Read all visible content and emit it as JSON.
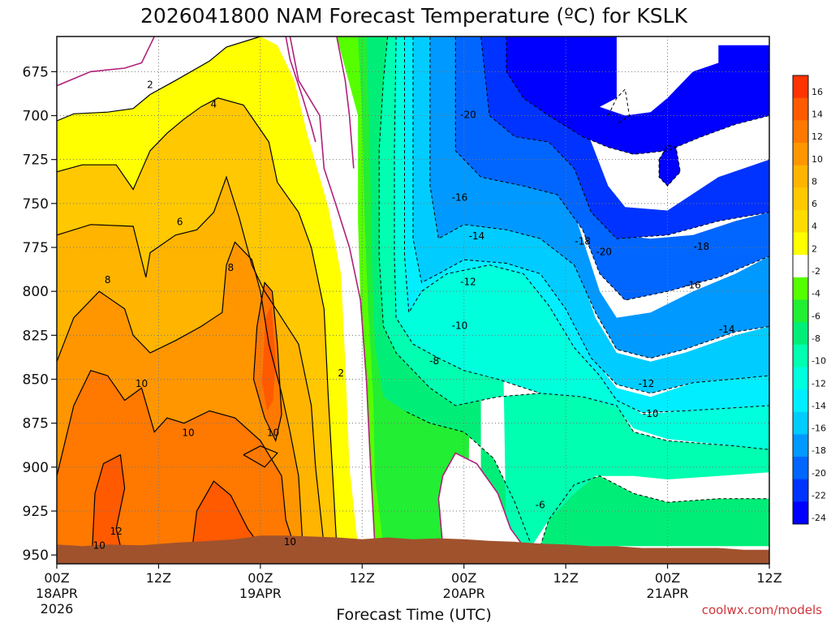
{
  "chart_data": {
    "type": "heatmap",
    "title": "2026041800 NAM Forecast Temperature (ºC) for KSLK",
    "xlabel": "Forecast Time (UTC)",
    "ylabel": "",
    "credit": "coolwx.com/models",
    "x_ticks": [
      {
        "hours": 0,
        "label": "00Z",
        "date": "18APR",
        "year": "2026"
      },
      {
        "hours": 12,
        "label": "12Z",
        "date": "",
        "year": ""
      },
      {
        "hours": 24,
        "label": "00Z",
        "date": "19APR",
        "year": ""
      },
      {
        "hours": 36,
        "label": "12Z",
        "date": "",
        "year": ""
      },
      {
        "hours": 48,
        "label": "00Z",
        "date": "20APR",
        "year": ""
      },
      {
        "hours": 60,
        "label": "12Z",
        "date": "",
        "year": ""
      },
      {
        "hours": 72,
        "label": "00Z",
        "date": "21APR",
        "year": ""
      },
      {
        "hours": 84,
        "label": "12Z",
        "date": "",
        "year": ""
      }
    ],
    "xlim": [
      0,
      84
    ],
    "y_ticks": [
      675,
      700,
      725,
      750,
      775,
      800,
      825,
      850,
      875,
      900,
      925,
      950
    ],
    "ylim": [
      655,
      955
    ],
    "y_axis": "pressure (hPa), inverted",
    "grid": true,
    "colorbar": {
      "labels": [
        "16",
        "14",
        "12",
        "10",
        "8",
        "6",
        "4",
        "2",
        "-2",
        "-4",
        "-6",
        "-8",
        "-10",
        "-12",
        "-14",
        "-16",
        "-18",
        "-20",
        "-22",
        "-24"
      ],
      "colors": [
        "#ff3300",
        "#ff5a00",
        "#ff7800",
        "#ff9600",
        "#ffb400",
        "#ffc800",
        "#ffdc00",
        "#ffff00",
        "#ffffff",
        "#55ff00",
        "#22ee33",
        "#00ee77",
        "#00ffb0",
        "#00ffdd",
        "#00eeff",
        "#00ccff",
        "#0099ff",
        "#0066ff",
        "#0033ff",
        "#0000ff"
      ]
    },
    "fill_colors": {
      "t12": "#ff5a00",
      "t10": "#ff7800",
      "t8": "#ff9600",
      "t6": "#ffb400",
      "t4": "#ffc800",
      "t2": "#ffff00",
      "cold_m2": "#55ff00",
      "cold_m4": "#22ee33",
      "cold_m6": "#00ee77",
      "cold_m8": "#00ffb0",
      "cold_m10": "#00ffdd",
      "cold_m12": "#00eeff",
      "cold_m14": "#00ccff",
      "cold_m16": "#0099ff",
      "cold_m18": "#0066ff",
      "cold_m20": "#0033ff",
      "cold_m22": "#0000ff",
      "terrain": "#a0522d",
      "freezing_line": "#b0207a"
    },
    "contour_labels": [
      {
        "text": "2",
        "h": 11,
        "p": 683
      },
      {
        "text": "4",
        "h": 18.5,
        "p": 694
      },
      {
        "text": "6",
        "h": 14.5,
        "p": 761
      },
      {
        "text": "8",
        "h": 6,
        "p": 794
      },
      {
        "text": "8",
        "h": 20.5,
        "p": 787
      },
      {
        "text": "10",
        "h": 10,
        "p": 853
      },
      {
        "text": "10",
        "h": 15.5,
        "p": 881
      },
      {
        "text": "10",
        "h": 25.5,
        "p": 881
      },
      {
        "text": "10",
        "h": 27.5,
        "p": 943
      },
      {
        "text": "10",
        "h": 5,
        "p": 945
      },
      {
        "text": "12",
        "h": 7,
        "p": 937
      },
      {
        "text": "2",
        "h": 33.5,
        "p": 847
      },
      {
        "text": "-20",
        "h": 48.5,
        "p": 700
      },
      {
        "text": "-16",
        "h": 47.5,
        "p": 747
      },
      {
        "text": "-14",
        "h": 49.5,
        "p": 769
      },
      {
        "text": "-12",
        "h": 48.5,
        "p": 795
      },
      {
        "text": "-10",
        "h": 47.5,
        "p": 820
      },
      {
        "text": "-8",
        "h": 44.5,
        "p": 840
      },
      {
        "text": "-6",
        "h": 57,
        "p": 922
      },
      {
        "text": "-18",
        "h": 62,
        "p": 772
      },
      {
        "text": "-20",
        "h": 64.5,
        "p": 778
      },
      {
        "text": "-18",
        "h": 76,
        "p": 775
      },
      {
        "text": "-16",
        "h": 75,
        "p": 797
      },
      {
        "text": "-14",
        "h": 79,
        "p": 822
      },
      {
        "text": "-12",
        "h": 69.5,
        "p": 853
      },
      {
        "text": "-10",
        "h": 70,
        "p": 870
      }
    ]
  }
}
